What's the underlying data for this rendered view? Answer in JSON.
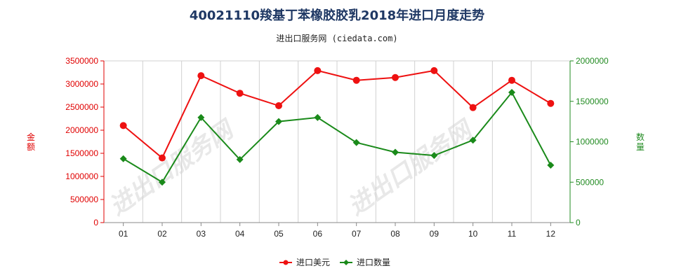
{
  "title": "40021110羧基丁苯橡胶胶乳2018年进口月度走势",
  "subtitle": "进出口服务网 (ciedata.com)",
  "watermark": "进出口服务网",
  "colors": {
    "usd": "#ee1111",
    "qty": "#1a8a1a",
    "title": "#1f3864"
  },
  "chart_data": {
    "type": "line",
    "categories": [
      "01",
      "02",
      "03",
      "04",
      "05",
      "06",
      "07",
      "08",
      "09",
      "10",
      "11",
      "12"
    ],
    "series": [
      {
        "name": "进口美元",
        "axis": "left",
        "marker": "circle",
        "values": [
          2100000,
          1400000,
          3180000,
          2800000,
          2530000,
          3290000,
          3080000,
          3140000,
          3290000,
          2490000,
          3080000,
          2580000
        ]
      },
      {
        "name": "进口数量",
        "axis": "right",
        "marker": "diamond",
        "values": [
          790000,
          500000,
          1300000,
          780000,
          1250000,
          1300000,
          990000,
          870000,
          830000,
          1020000,
          1610000,
          710000
        ]
      }
    ],
    "y_left": {
      "label": "金额",
      "ylim": [
        0,
        3500000
      ],
      "ticks": [
        "0",
        "500000",
        "1000000",
        "1500000",
        "2000000",
        "2500000",
        "3000000",
        "3500000"
      ]
    },
    "y_right": {
      "label": "数量",
      "ylim": [
        0,
        2000000
      ],
      "ticks": [
        "0",
        "500000",
        "1000000",
        "1500000",
        "2000000"
      ]
    },
    "grid": "vertical",
    "legend": "bottom-center"
  }
}
